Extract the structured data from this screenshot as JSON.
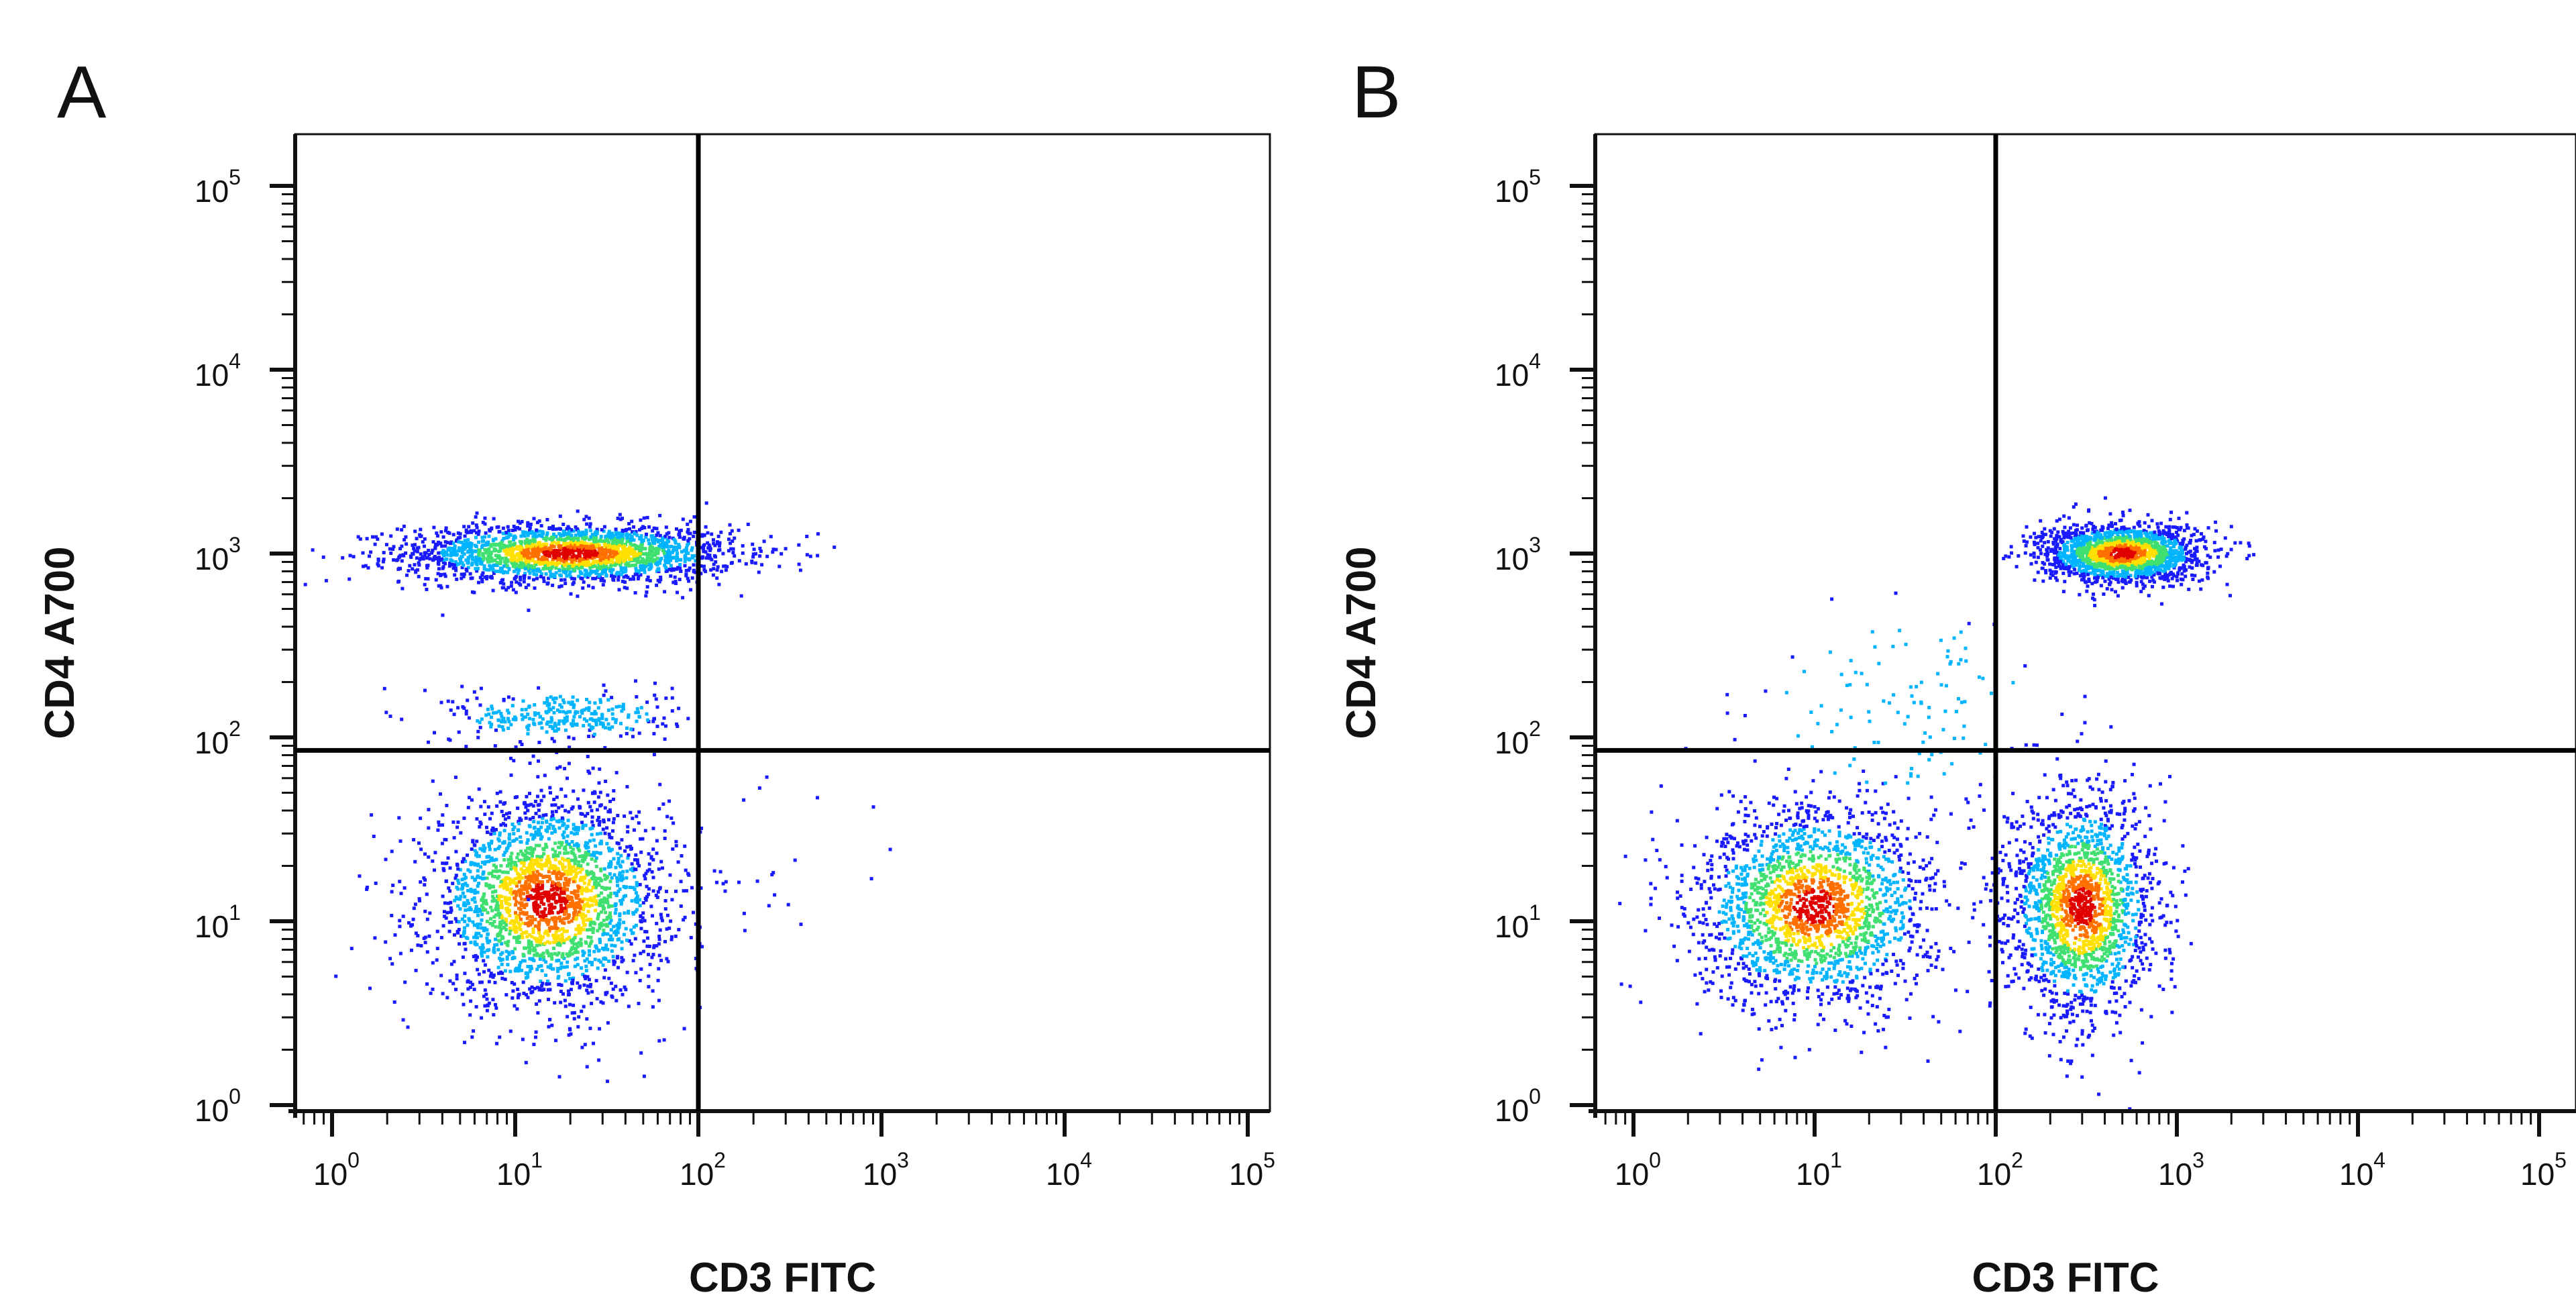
{
  "chart_data": [
    {
      "type": "scatter",
      "panel_label": "A",
      "xlabel": "CD3 FITC",
      "ylabel": "CD4 A700",
      "xscale": "log",
      "yscale": "log",
      "xlim": [
        0.6,
        120000
      ],
      "ylim": [
        0.8,
        200000
      ],
      "xticks": [
        1,
        10,
        100,
        1000,
        10000,
        100000
      ],
      "yticks": [
        1,
        10,
        100,
        1000,
        10000,
        100000
      ],
      "tick_base": "10",
      "tick_exponents": [
        "0",
        "1",
        "2",
        "3",
        "4",
        "5"
      ],
      "quadrant_gate": {
        "x": 100,
        "y": 85
      },
      "point_color_scale": [
        "#1a1aff",
        "#00b4ff",
        "#40e070",
        "#ffe000",
        "#ff7000",
        "#e00000"
      ],
      "series": [
        {
          "center_x": 20,
          "center_y": 1000,
          "spread_x_decades": 0.45,
          "spread_y_decades": 0.08,
          "count": 2200
        },
        {
          "center_x": 15,
          "center_y": 13,
          "spread_x_decades": 0.32,
          "spread_y_decades": 0.28,
          "count": 2400
        },
        {
          "center_x": 18,
          "center_y": 130,
          "spread_x_decades": 0.3,
          "spread_y_decades": 0.07,
          "count": 300
        },
        {
          "center_x": 200,
          "center_y": 20,
          "spread_x_decades": 0.45,
          "spread_y_decades": 0.35,
          "count": 30
        }
      ]
    },
    {
      "type": "scatter",
      "panel_label": "B",
      "xlabel": "CD3 FITC",
      "ylabel": "CD4 A700",
      "xscale": "log",
      "yscale": "log",
      "xlim": [
        0.6,
        120000
      ],
      "ylim": [
        0.8,
        200000
      ],
      "xticks": [
        1,
        10,
        100,
        1000,
        10000,
        100000
      ],
      "yticks": [
        1,
        10,
        100,
        1000,
        10000,
        100000
      ],
      "tick_base": "10",
      "tick_exponents": [
        "0",
        "1",
        "2",
        "3",
        "4",
        "5"
      ],
      "quadrant_gate": {
        "x": 100,
        "y": 85
      },
      "point_color_scale": [
        "#1a1aff",
        "#00b4ff",
        "#40e070",
        "#ffe000",
        "#ff7000",
        "#e00000"
      ],
      "series": [
        {
          "center_x": 500,
          "center_y": 1000,
          "spread_x_decades": 0.22,
          "spread_y_decades": 0.08,
          "count": 1800
        },
        {
          "center_x": 10,
          "center_y": 12,
          "spread_x_decades": 0.33,
          "spread_y_decades": 0.27,
          "count": 2000
        },
        {
          "center_x": 300,
          "center_y": 12,
          "spread_x_decades": 0.2,
          "spread_y_decades": 0.3,
          "count": 1800
        },
        {
          "center_x": 30,
          "center_y": 150,
          "spread_x_decades": 0.4,
          "spread_y_decades": 0.3,
          "count": 120
        }
      ]
    }
  ]
}
